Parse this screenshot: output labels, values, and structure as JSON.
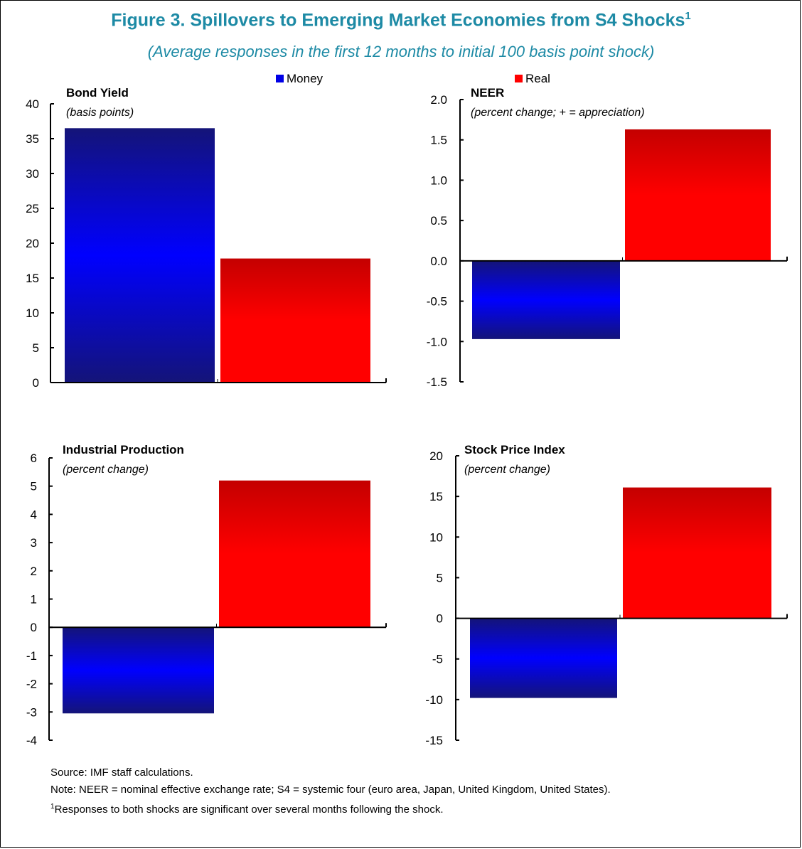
{
  "header": {
    "title": "Figure 3. Spillovers to Emerging Market Economies from S4 Shocks",
    "title_footnote_mark": "1",
    "subtitle": "(Average responses in the first 12 months to initial 100 basis point shock)"
  },
  "legend": [
    {
      "label": "Money",
      "color": "#0000e6"
    },
    {
      "label": "Real",
      "color": "#ff0000"
    }
  ],
  "chart_data": [
    {
      "type": "bar",
      "title": "Bond Yield",
      "subtitle": "(basis points)",
      "categories": [
        "Money",
        "Real"
      ],
      "values": [
        36.5,
        17.8
      ],
      "ylim": [
        0,
        40
      ],
      "ticks": [
        "40",
        "35",
        "30",
        "25",
        "20",
        "15",
        "10",
        "5",
        "0"
      ],
      "grid": false,
      "colors": [
        "#0000e6",
        "#ff0000"
      ]
    },
    {
      "type": "bar",
      "title": "NEER",
      "subtitle": "(percent change; + = appreciation)",
      "categories": [
        "Money",
        "Real"
      ],
      "values": [
        -0.97,
        1.63
      ],
      "ylim": [
        -1.5,
        2.0
      ],
      "ticks": [
        "2.0",
        "1.5",
        "1.0",
        "0.5",
        "0.0",
        "-0.5",
        "-1.0",
        "-1.5"
      ],
      "grid": false,
      "colors": [
        "#0000e6",
        "#ff0000"
      ]
    },
    {
      "type": "bar",
      "title": "Industrial Production",
      "subtitle": "(percent change)",
      "categories": [
        "Money",
        "Real"
      ],
      "values": [
        -3.05,
        5.2
      ],
      "ylim": [
        -4,
        6
      ],
      "ticks": [
        "6",
        "5",
        "4",
        "3",
        "2",
        "1",
        "0",
        "-1",
        "-2",
        "-3",
        "-4"
      ],
      "grid": false,
      "colors": [
        "#0000e6",
        "#ff0000"
      ]
    },
    {
      "type": "bar",
      "title": "Stock Price Index",
      "subtitle": "(percent change)",
      "categories": [
        "Money",
        "Real"
      ],
      "values": [
        -9.8,
        16.1
      ],
      "ylim": [
        -15,
        20
      ],
      "ticks": [
        "20",
        "15",
        "10",
        "5",
        "0",
        "-5",
        "-10",
        "-15"
      ],
      "grid": false,
      "colors": [
        "#0000e6",
        "#ff0000"
      ]
    }
  ],
  "notes": {
    "source": "Source: IMF staff calculations.",
    "note": "Note: NEER = nominal effective exchange rate; S4 = systemic four (euro area, Japan, United Kingdom, United States).",
    "footnote_mark": "1",
    "footnote": "Responses to both shocks are significant over several months following the shock."
  }
}
